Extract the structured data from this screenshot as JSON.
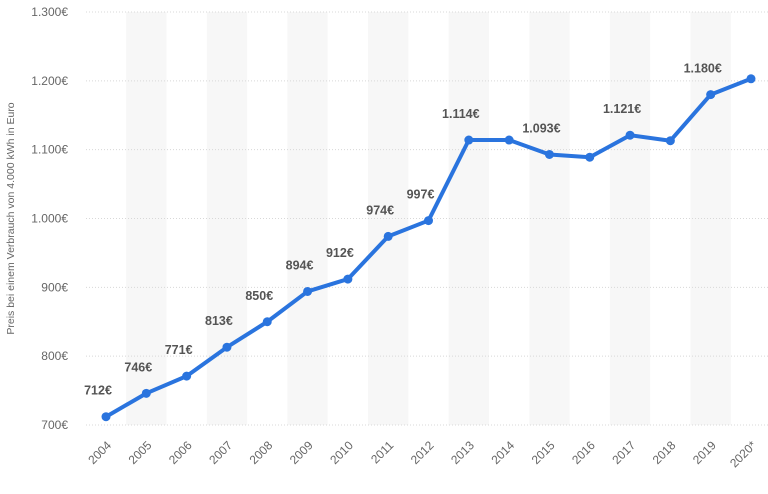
{
  "chart_data": {
    "type": "line",
    "title": "",
    "xlabel": "",
    "ylabel": "Preis bei einem Verbrauch von 4.000 kWh in Euro",
    "categories": [
      "2004",
      "2005",
      "2006",
      "2007",
      "2008",
      "2009",
      "2010",
      "2011",
      "2012",
      "2013",
      "2014",
      "2015",
      "2016",
      "2017",
      "2018",
      "2019",
      "2020*"
    ],
    "values": [
      712,
      746,
      771,
      813,
      850,
      894,
      912,
      974,
      997,
      1114,
      1114,
      1093,
      1089,
      1121,
      1113,
      1180,
      1203
    ],
    "data_labels": [
      "712€",
      "746€",
      "771€",
      "813€",
      "850€",
      "894€",
      "912€",
      "974€",
      "997€",
      "1.114€",
      "",
      "1.093€",
      "",
      "1.121€",
      "",
      "1.180€",
      ""
    ],
    "ylim": [
      700,
      1300
    ],
    "yticks": [
      700,
      800,
      900,
      1000,
      1100,
      1200,
      1300
    ],
    "ytick_labels": [
      "700€",
      "800€",
      "900€",
      "1.000€",
      "1.100€",
      "1.200€",
      "1.300€"
    ],
    "grid": true,
    "legend": "none",
    "line_color": "#2a74de"
  }
}
